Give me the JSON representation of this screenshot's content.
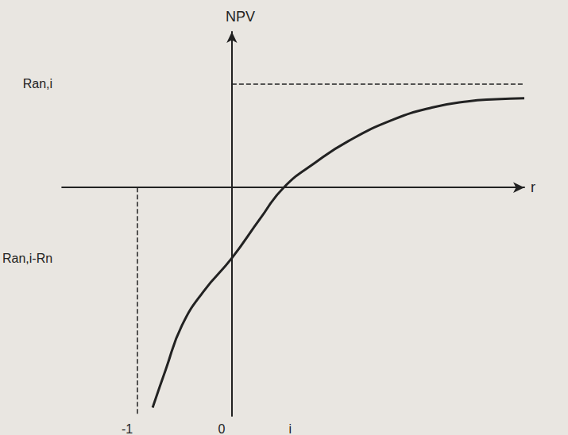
{
  "chart_data": {
    "type": "line",
    "x_label": "r",
    "y_label": "NPV",
    "x": [
      -0.84,
      -0.7,
      -0.53,
      -0.3,
      0,
      0.3,
      0.55,
      0.9,
      1.24,
      1.7,
      2.12,
      2.5,
      2.8,
      3.1
    ],
    "values": [
      -2.12,
      -1.75,
      -1.33,
      -1.0,
      -0.68,
      -0.3,
      0,
      0.25,
      0.45,
      0.65,
      0.77,
      0.83,
      0.85,
      0.86
    ],
    "color": "#222222",
    "line_style": "solid",
    "xlim": [
      -1.8,
      3.1
    ],
    "ylim": [
      -2.2,
      1.5
    ],
    "xticks": [
      -1,
      0,
      {
        "value": 0.55,
        "label": "i"
      }
    ],
    "yticks": [
      {
        "value": -0.68,
        "label": "Ran,i-Rn"
      },
      {
        "value": 1,
        "label": "Ran,i"
      }
    ],
    "asymptotes": {
      "x": -1,
      "y": 1
    },
    "grid": false
  }
}
